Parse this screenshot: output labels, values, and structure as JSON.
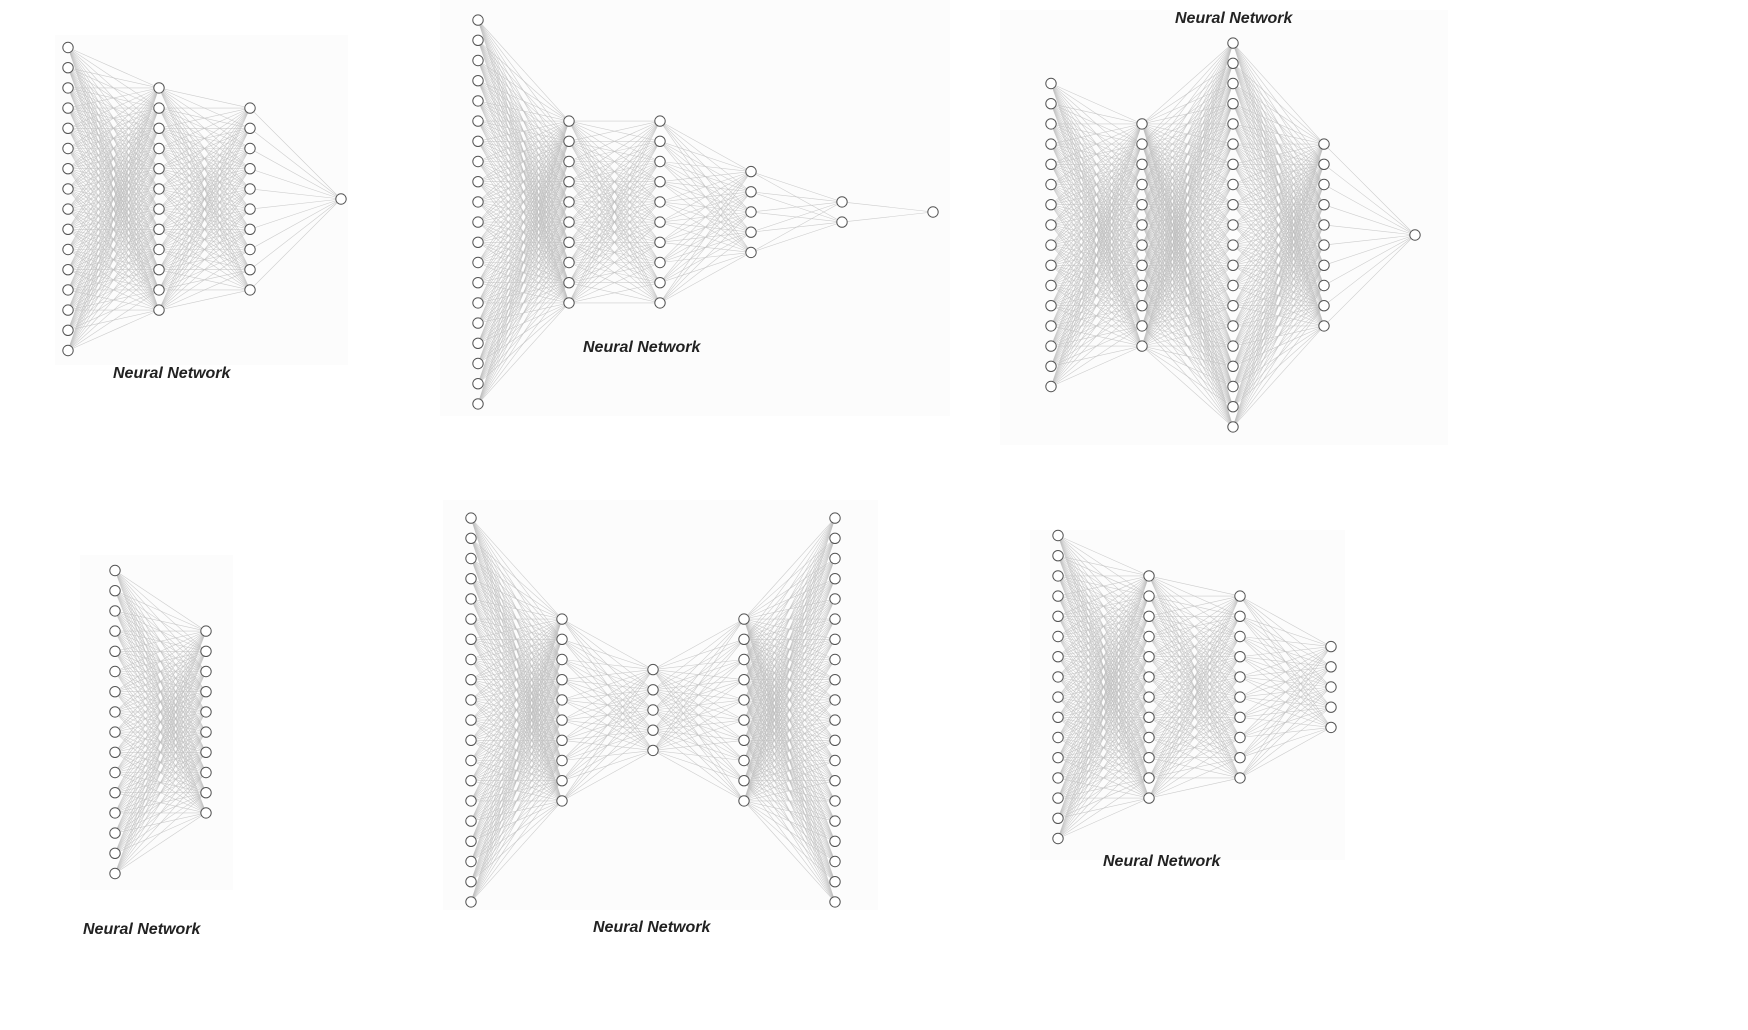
{
  "diagrams": [
    {
      "label": "Neural Network",
      "layers": [
        16,
        12,
        10,
        1
      ]
    },
    {
      "label": "Neural Network",
      "layers": [
        20,
        10,
        10,
        5,
        2,
        1
      ]
    },
    {
      "label": "Neural Network",
      "layers": [
        16,
        12,
        20,
        10,
        1
      ]
    },
    {
      "label": "Neural Network",
      "layers": [
        16,
        10
      ]
    },
    {
      "label": "Neural Network",
      "layers": [
        20,
        10,
        5,
        10,
        20
      ]
    },
    {
      "label": "Neural Network",
      "layers": [
        16,
        12,
        10,
        5
      ]
    }
  ]
}
